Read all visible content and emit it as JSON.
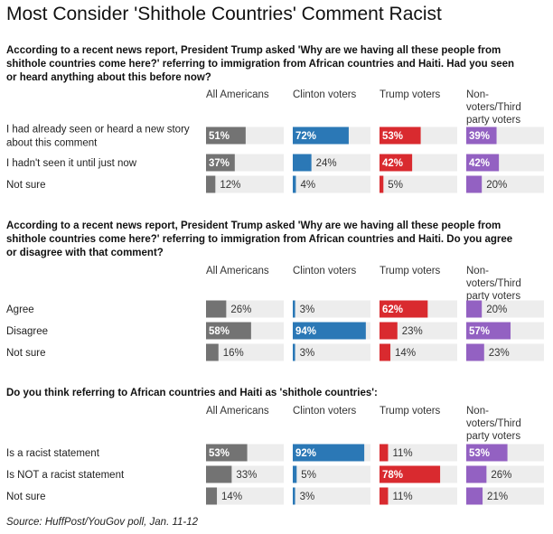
{
  "title": "Most Consider 'Shithole Countries' Comment Racist",
  "source": "Source: HuffPost/YouGov poll, Jan. 11-12",
  "columns": [
    {
      "label_lines": [
        "All Americans"
      ],
      "color": "#737373"
    },
    {
      "label_lines": [
        "Clinton voters"
      ],
      "color": "#2b78b6"
    },
    {
      "label_lines": [
        "Trump voters"
      ],
      "color": "#d92a2f"
    },
    {
      "label_lines": [
        "Non-",
        "voters/Third",
        "party voters"
      ],
      "color": "#9361c2"
    }
  ],
  "track_color": "#ededed",
  "chart_data": [
    {
      "type": "bar",
      "question_lines": [
        "According to a recent news report, President Trump asked 'Why are we having all these people from",
        "shithole countries come here?' referring to immigration from African countries and Haiti. Had you seen",
        "or heard anything about this before now?"
      ],
      "categories": [
        [
          "I had already seen or heard a new story",
          "about this comment"
        ],
        [
          "I hadn't seen it until just now"
        ],
        [
          "Not sure"
        ]
      ],
      "series": [
        {
          "name": "All Americans",
          "values": [
            51,
            37,
            12
          ]
        },
        {
          "name": "Clinton voters",
          "values": [
            72,
            24,
            4
          ]
        },
        {
          "name": "Trump voters",
          "values": [
            53,
            42,
            5
          ]
        },
        {
          "name": "Non-voters/Third party voters",
          "values": [
            39,
            42,
            20
          ]
        }
      ],
      "unit": "%",
      "xlim": [
        0,
        100
      ]
    },
    {
      "type": "bar",
      "question_lines": [
        "According to a recent news report, President Trump asked 'Why are we having all these people from",
        "shithole countries come here?' referring to immigration from African countries and Haiti. Do you agree",
        "or disagree with that comment?"
      ],
      "categories": [
        [
          "Agree"
        ],
        [
          "Disagree"
        ],
        [
          "Not sure"
        ]
      ],
      "series": [
        {
          "name": "All Americans",
          "values": [
            26,
            58,
            16
          ]
        },
        {
          "name": "Clinton voters",
          "values": [
            3,
            94,
            3
          ]
        },
        {
          "name": "Trump voters",
          "values": [
            62,
            23,
            14
          ]
        },
        {
          "name": "Non-voters/Third party voters",
          "values": [
            20,
            57,
            23
          ]
        }
      ],
      "unit": "%",
      "xlim": [
        0,
        100
      ]
    },
    {
      "type": "bar",
      "question_lines": [
        "Do you think referring to African countries and Haiti as 'shithole countries':"
      ],
      "categories": [
        [
          "Is a racist statement"
        ],
        [
          "Is NOT a racist statement"
        ],
        [
          "Not sure"
        ]
      ],
      "series": [
        {
          "name": "All Americans",
          "values": [
            53,
            33,
            14
          ]
        },
        {
          "name": "Clinton voters",
          "values": [
            92,
            5,
            3
          ]
        },
        {
          "name": "Trump voters",
          "values": [
            11,
            78,
            11
          ]
        },
        {
          "name": "Non-voters/Third party voters",
          "values": [
            53,
            26,
            21
          ]
        }
      ],
      "unit": "%",
      "xlim": [
        0,
        100
      ]
    }
  ]
}
